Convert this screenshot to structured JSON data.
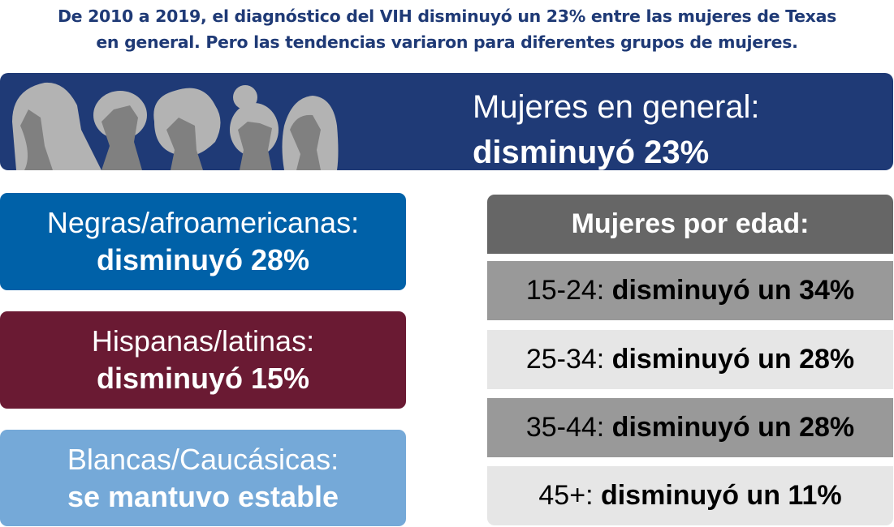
{
  "title": {
    "line1": "De 2010 a 2019, el diagnóstico del VIH disminuyó un 23% entre las mujeres de Texas",
    "line2": "en general. Pero las tendencias variaron para diferentes grupos de mujeres."
  },
  "banner": {
    "label": "Mujeres en general:",
    "value": "disminuyó 23%",
    "icon": "women-silhouettes"
  },
  "race_groups": [
    {
      "label": "Negras/afroamericanas:",
      "value": "disminuyó 28%",
      "color": "#0061a8"
    },
    {
      "label": "Hispanas/latinas:",
      "value": "disminuyó 15%",
      "color": "#6a1a33"
    },
    {
      "label": "Blancas/Caucásicas:",
      "value": "se mantuvo estable",
      "color": "#75a9d8"
    }
  ],
  "age": {
    "header": "Mujeres por edad:",
    "rows": [
      {
        "age": "15-24:",
        "value": "disminuyó un 34%"
      },
      {
        "age": "25-34:",
        "value": "disminuyó un 28%"
      },
      {
        "age": "35-44:",
        "value": "disminuyó un 28%"
      },
      {
        "age": "45+:",
        "value": "disminuyó un 11%"
      }
    ]
  },
  "colors": {
    "navy": "#1f3a76",
    "header_gray": "#666666",
    "row_dark": "#999999",
    "row_light": "#e6e6e6"
  }
}
